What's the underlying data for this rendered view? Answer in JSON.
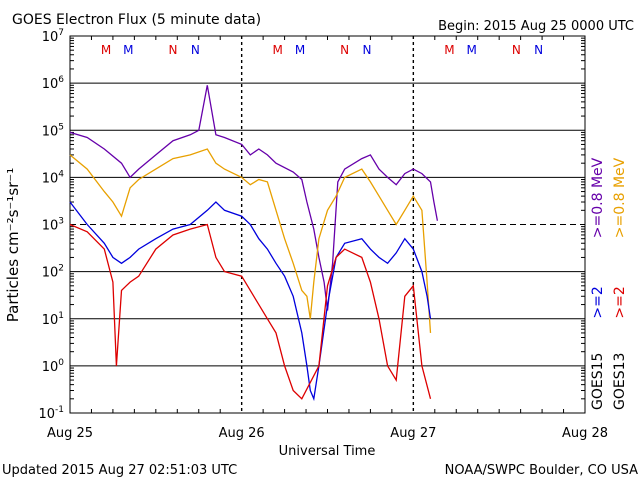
{
  "chart_data": {
    "type": "line",
    "title": "GOES Electron Flux (5 minute data)",
    "begin_label": "Begin: 2015 Aug 25 0000 UTC",
    "xlabel": "Universal Time",
    "ylabel": "Particles cm⁻²s⁻¹sr⁻¹",
    "y_scale": "log",
    "ylim": [
      0.1,
      10000000
    ],
    "xlim_days": [
      0,
      3
    ],
    "x_tick_labels": [
      "Aug 25",
      "Aug 26",
      "Aug 27",
      "Aug 28"
    ],
    "y_ticks": [
      {
        "base": "10",
        "exp": "-1",
        "value": 0.1
      },
      {
        "base": "10",
        "exp": "0",
        "value": 1
      },
      {
        "base": "10",
        "exp": "1",
        "value": 10
      },
      {
        "base": "10",
        "exp": "2",
        "value": 100
      },
      {
        "base": "10",
        "exp": "3",
        "value": 1000
      },
      {
        "base": "10",
        "exp": "4",
        "value": 10000
      },
      {
        "base": "10",
        "exp": "5",
        "value": 100000
      },
      {
        "base": "10",
        "exp": "6",
        "value": 1000000
      },
      {
        "base": "10",
        "exp": "7",
        "value": 10000000
      }
    ],
    "threshold": 1000,
    "grid": true,
    "day_markers": [
      {
        "day": 0.21,
        "letter": "M",
        "color": "#dd0000"
      },
      {
        "day": 0.34,
        "letter": "M",
        "color": "#0000dd"
      },
      {
        "day": 0.6,
        "letter": "N",
        "color": "#dd0000"
      },
      {
        "day": 0.73,
        "letter": "N",
        "color": "#0000dd"
      },
      {
        "day": 1.21,
        "letter": "M",
        "color": "#dd0000"
      },
      {
        "day": 1.34,
        "letter": "M",
        "color": "#0000dd"
      },
      {
        "day": 1.6,
        "letter": "N",
        "color": "#dd0000"
      },
      {
        "day": 1.73,
        "letter": "N",
        "color": "#0000dd"
      },
      {
        "day": 2.21,
        "letter": "M",
        "color": "#dd0000"
      },
      {
        "day": 2.34,
        "letter": "M",
        "color": "#0000dd"
      },
      {
        "day": 2.6,
        "letter": "N",
        "color": "#dd0000"
      },
      {
        "day": 2.73,
        "letter": "N",
        "color": "#0000dd"
      }
    ],
    "series": [
      {
        "name": ">=0.8 MeV",
        "satellite": "GOES15",
        "color": "#6600aa",
        "points": [
          [
            0,
            90000.0
          ],
          [
            0.1,
            70000.0
          ],
          [
            0.2,
            40000.0
          ],
          [
            0.3,
            20000.0
          ],
          [
            0.35,
            10000.0
          ],
          [
            0.4,
            15000.0
          ],
          [
            0.5,
            30000.0
          ],
          [
            0.6,
            60000.0
          ],
          [
            0.7,
            80000.0
          ],
          [
            0.75,
            100000.0
          ],
          [
            0.8,
            900000.0
          ],
          [
            0.85,
            80000.0
          ],
          [
            0.9,
            70000.0
          ],
          [
            1.0,
            50000.0
          ],
          [
            1.05,
            30000.0
          ],
          [
            1.1,
            40000.0
          ],
          [
            1.15,
            30000.0
          ],
          [
            1.2,
            20000.0
          ],
          [
            1.3,
            13000.0
          ],
          [
            1.35,
            9000.0
          ],
          [
            1.38,
            3000.0
          ],
          [
            1.42,
            800.0
          ],
          [
            1.45,
            200.0
          ],
          [
            1.48,
            60
          ],
          [
            1.5,
            15
          ],
          [
            1.53,
            150
          ],
          [
            1.56,
            8000.0
          ],
          [
            1.6,
            15000.0
          ],
          [
            1.7,
            25000.0
          ],
          [
            1.75,
            30000.0
          ],
          [
            1.8,
            15000.0
          ],
          [
            1.85,
            10000.0
          ],
          [
            1.9,
            7000.0
          ],
          [
            1.95,
            12000.0
          ],
          [
            2.0,
            15000.0
          ],
          [
            2.05,
            12000.0
          ],
          [
            2.1,
            8000.0
          ],
          [
            2.12,
            3000.0
          ],
          [
            2.14,
            1200.0
          ]
        ]
      },
      {
        "name": ">=0.8 MeV",
        "satellite": "GOES13",
        "color": "#e8a000",
        "points": [
          [
            0,
            30000.0
          ],
          [
            0.1,
            15000.0
          ],
          [
            0.2,
            5000.0
          ],
          [
            0.25,
            3000.0
          ],
          [
            0.3,
            1500.0
          ],
          [
            0.35,
            6000.0
          ],
          [
            0.4,
            9000.0
          ],
          [
            0.5,
            15000.0
          ],
          [
            0.6,
            25000.0
          ],
          [
            0.7,
            30000.0
          ],
          [
            0.8,
            40000.0
          ],
          [
            0.85,
            20000.0
          ],
          [
            0.9,
            15000.0
          ],
          [
            1.0,
            10000.0
          ],
          [
            1.05,
            7000.0
          ],
          [
            1.1,
            9000.0
          ],
          [
            1.15,
            8000.0
          ],
          [
            1.2,
            2000.0
          ],
          [
            1.25,
            500
          ],
          [
            1.3,
            150
          ],
          [
            1.35,
            40
          ],
          [
            1.38,
            30
          ],
          [
            1.4,
            10
          ],
          [
            1.42,
            60
          ],
          [
            1.45,
            500
          ],
          [
            1.5,
            2000.0
          ],
          [
            1.55,
            4000.0
          ],
          [
            1.6,
            10000.0
          ],
          [
            1.7,
            15000.0
          ],
          [
            1.75,
            8000.0
          ],
          [
            1.8,
            4000.0
          ],
          [
            1.85,
            2000.0
          ],
          [
            1.9,
            1000.0
          ],
          [
            1.95,
            2000.0
          ],
          [
            2.0,
            4000.0
          ],
          [
            2.05,
            2000.0
          ],
          [
            2.08,
            60
          ],
          [
            2.1,
            5
          ]
        ]
      },
      {
        "name": ">=2 MeV",
        "satellite": "GOES15",
        "color": "#0000dd",
        "points": [
          [
            0,
            3000.0
          ],
          [
            0.1,
            1000.0
          ],
          [
            0.2,
            400
          ],
          [
            0.25,
            200
          ],
          [
            0.3,
            150
          ],
          [
            0.35,
            200
          ],
          [
            0.4,
            300
          ],
          [
            0.5,
            500
          ],
          [
            0.6,
            800
          ],
          [
            0.7,
            1000.0
          ],
          [
            0.8,
            2000.0
          ],
          [
            0.85,
            3000.0
          ],
          [
            0.9,
            2000.0
          ],
          [
            1.0,
            1500.0
          ],
          [
            1.05,
            1000.0
          ],
          [
            1.1,
            500
          ],
          [
            1.15,
            300
          ],
          [
            1.2,
            150
          ],
          [
            1.25,
            80
          ],
          [
            1.3,
            30
          ],
          [
            1.35,
            5
          ],
          [
            1.38,
            1
          ],
          [
            1.4,
            0.3
          ],
          [
            1.42,
            0.2
          ],
          [
            1.45,
            1
          ],
          [
            1.5,
            20
          ],
          [
            1.55,
            200
          ],
          [
            1.6,
            400
          ],
          [
            1.7,
            500
          ],
          [
            1.75,
            300
          ],
          [
            1.8,
            200
          ],
          [
            1.85,
            150
          ],
          [
            1.9,
            250
          ],
          [
            1.95,
            500
          ],
          [
            2.0,
            300
          ],
          [
            2.05,
            100
          ],
          [
            2.08,
            30
          ],
          [
            2.1,
            10
          ]
        ]
      },
      {
        "name": ">=2 MeV",
        "satellite": "GOES13",
        "color": "#dd0000",
        "points": [
          [
            0,
            1000.0
          ],
          [
            0.1,
            700
          ],
          [
            0.2,
            300
          ],
          [
            0.25,
            60
          ],
          [
            0.27,
            1
          ],
          [
            0.3,
            40
          ],
          [
            0.35,
            60
          ],
          [
            0.4,
            80
          ],
          [
            0.5,
            300
          ],
          [
            0.6,
            600
          ],
          [
            0.7,
            800
          ],
          [
            0.8,
            1000.0
          ],
          [
            0.85,
            200
          ],
          [
            0.9,
            100
          ],
          [
            1.0,
            80
          ],
          [
            1.05,
            40
          ],
          [
            1.1,
            20
          ],
          [
            1.15,
            10
          ],
          [
            1.2,
            5
          ],
          [
            1.25,
            1
          ],
          [
            1.3,
            0.3
          ],
          [
            1.35,
            0.2
          ],
          [
            1.45,
            1
          ],
          [
            1.5,
            50
          ],
          [
            1.55,
            200
          ],
          [
            1.6,
            300
          ],
          [
            1.7,
            200
          ],
          [
            1.75,
            60
          ],
          [
            1.8,
            10
          ],
          [
            1.85,
            1
          ],
          [
            1.9,
            0.5
          ],
          [
            1.95,
            30
          ],
          [
            2.0,
            50
          ],
          [
            2.05,
            1
          ],
          [
            2.1,
            0.2
          ]
        ]
      }
    ],
    "legend": [
      {
        "satellite": "GOES15",
        "low": ">=2",
        "high": ">=0.8 MeV",
        "low_color": "#0000dd",
        "high_color": "#6600aa"
      },
      {
        "satellite": "GOES13",
        "low": ">=2",
        "high": ">=0.8 MeV",
        "low_color": "#dd0000",
        "high_color": "#e8a000"
      }
    ]
  },
  "footer": {
    "updated": "Updated 2015 Aug 27 02:51:03 UTC",
    "credit": "NOAA/SWPC Boulder, CO USA"
  }
}
